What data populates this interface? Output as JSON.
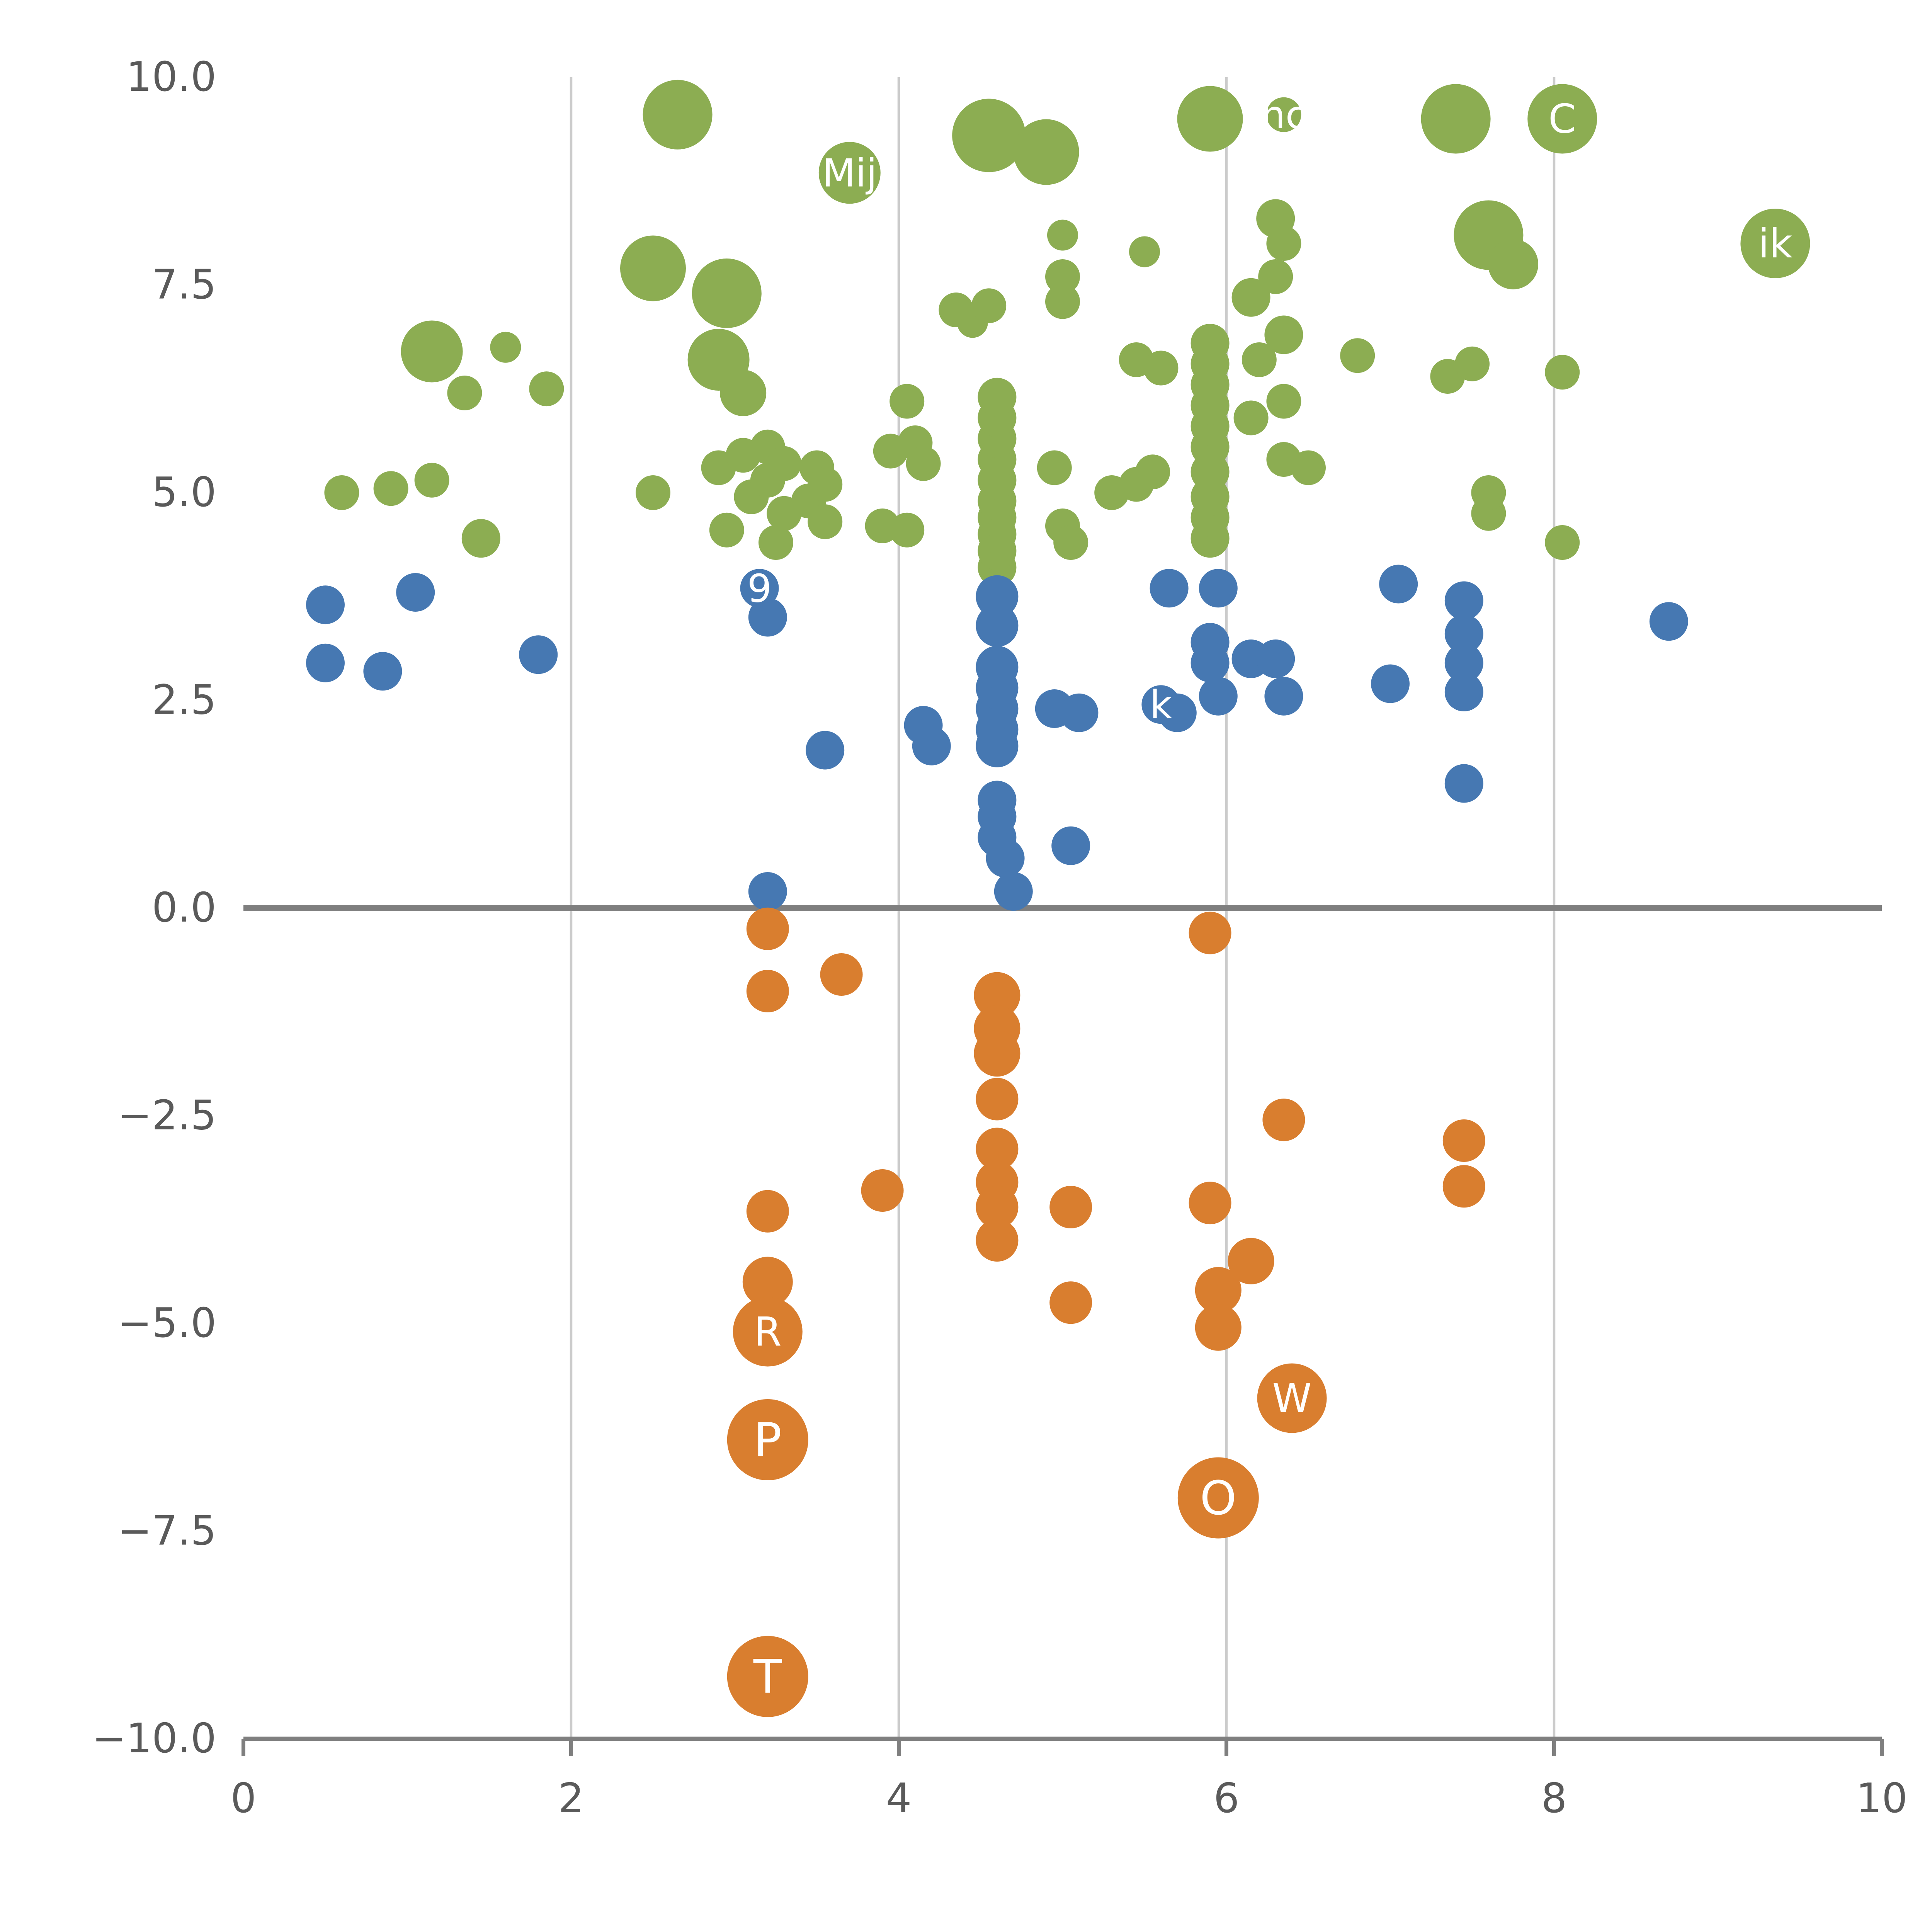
{
  "chart_data": {
    "type": "scatter",
    "title": "",
    "xlabel": "",
    "ylabel": "",
    "xlim": [
      0,
      10
    ],
    "ylim": [
      -10,
      10
    ],
    "x_ticks": {
      "values": [
        0,
        2,
        4,
        6,
        8,
        10
      ],
      "labels": [
        "0",
        "2",
        "4",
        "6",
        "8",
        "10"
      ]
    },
    "y_ticks": {
      "values": [
        10,
        7.5,
        5,
        2.5,
        0,
        -2.5,
        -5,
        -7.5,
        -10
      ],
      "labels": [
        "10.0",
        "7.5",
        "5.0",
        "2.5",
        "0.0",
        "−2.5",
        "−5.0",
        "−7.5",
        "−10.0"
      ]
    },
    "grid": {
      "vertical_x": [
        2,
        4,
        6,
        8
      ],
      "color": "#cbcbcb"
    },
    "zero_line": {
      "y": 0,
      "color": "#7f7f7f"
    },
    "axis_color": "#7f7f7f",
    "tick_label_color": "#5a5a5a",
    "bubble_label_color": "#ffffff",
    "legend": "none",
    "series": [
      {
        "name": "green",
        "color": "#8CAD52",
        "points": [
          [
            0.6,
            5.0,
            9
          ],
          [
            0.9,
            5.05,
            9
          ],
          [
            1.15,
            5.15,
            9
          ],
          [
            1.15,
            6.7,
            16
          ],
          [
            1.35,
            6.2,
            9
          ],
          [
            1.45,
            4.45,
            10
          ],
          [
            1.6,
            6.75,
            8
          ],
          [
            1.85,
            6.25,
            9
          ],
          [
            2.5,
            5.0,
            9
          ],
          [
            2.5,
            7.7,
            17
          ],
          [
            2.65,
            9.55,
            18
          ],
          [
            2.9,
            5.3,
            9
          ],
          [
            2.9,
            6.6,
            16
          ],
          [
            2.95,
            4.55,
            9
          ],
          [
            2.95,
            7.4,
            18
          ],
          [
            3.05,
            5.45,
            9
          ],
          [
            3.05,
            6.2,
            12
          ],
          [
            3.1,
            4.95,
            9
          ],
          [
            3.2,
            5.15,
            9
          ],
          [
            3.2,
            5.55,
            9
          ],
          [
            3.25,
            4.4,
            9
          ],
          [
            3.3,
            4.75,
            9
          ],
          [
            3.3,
            5.35,
            9
          ],
          [
            3.45,
            4.9,
            9
          ],
          [
            3.5,
            5.3,
            9
          ],
          [
            3.55,
            4.65,
            9
          ],
          [
            3.55,
            5.1,
            9
          ],
          [
            3.7,
            8.85,
            16,
            "Mij"
          ],
          [
            3.9,
            4.6,
            9
          ],
          [
            3.95,
            5.5,
            9
          ],
          [
            4.05,
            4.55,
            9
          ],
          [
            4.05,
            6.1,
            9
          ],
          [
            4.1,
            5.6,
            9
          ],
          [
            4.15,
            5.35,
            9
          ],
          [
            4.35,
            7.2,
            9
          ],
          [
            4.45,
            7.05,
            8
          ],
          [
            4.55,
            7.25,
            9
          ],
          [
            4.55,
            9.3,
            19
          ],
          [
            4.6,
            4.1,
            10
          ],
          [
            4.6,
            4.3,
            10
          ],
          [
            4.6,
            4.5,
            10
          ],
          [
            4.6,
            4.7,
            10
          ],
          [
            4.6,
            4.9,
            10
          ],
          [
            4.6,
            5.15,
            10
          ],
          [
            4.6,
            5.4,
            10
          ],
          [
            4.6,
            5.65,
            10
          ],
          [
            4.6,
            5.9,
            10
          ],
          [
            4.6,
            6.15,
            10
          ],
          [
            4.9,
            9.1,
            17
          ],
          [
            4.95,
            5.3,
            9
          ],
          [
            5.0,
            4.6,
            9
          ],
          [
            5.0,
            7.3,
            9
          ],
          [
            5.0,
            7.6,
            9
          ],
          [
            5.0,
            8.1,
            8
          ],
          [
            5.05,
            4.4,
            9
          ],
          [
            5.3,
            5.0,
            9
          ],
          [
            5.45,
            5.1,
            9
          ],
          [
            5.45,
            6.6,
            9
          ],
          [
            5.5,
            7.9,
            8
          ],
          [
            5.55,
            5.25,
            9
          ],
          [
            5.6,
            6.5,
            9
          ],
          [
            5.9,
            4.45,
            10
          ],
          [
            5.9,
            4.7,
            10
          ],
          [
            5.9,
            4.95,
            10
          ],
          [
            5.9,
            5.25,
            10
          ],
          [
            5.9,
            5.55,
            10
          ],
          [
            5.9,
            5.8,
            10
          ],
          [
            5.9,
            6.05,
            10
          ],
          [
            5.9,
            6.3,
            10
          ],
          [
            5.9,
            6.55,
            10
          ],
          [
            5.9,
            6.8,
            10
          ],
          [
            5.9,
            9.5,
            17
          ],
          [
            6.15,
            5.9,
            9
          ],
          [
            6.15,
            7.35,
            10
          ],
          [
            6.2,
            6.6,
            9
          ],
          [
            6.3,
            7.6,
            9
          ],
          [
            6.3,
            8.3,
            10
          ],
          [
            6.35,
            5.4,
            9
          ],
          [
            6.35,
            6.1,
            9
          ],
          [
            6.35,
            6.9,
            10
          ],
          [
            6.35,
            8.0,
            9
          ],
          [
            6.35,
            9.55,
            9,
            "nc"
          ],
          [
            6.5,
            5.3,
            9
          ],
          [
            6.8,
            6.65,
            9
          ],
          [
            7.35,
            6.4,
            9
          ],
          [
            7.4,
            9.5,
            18
          ],
          [
            7.5,
            6.55,
            9
          ],
          [
            7.6,
            4.75,
            9
          ],
          [
            7.6,
            5.0,
            9
          ],
          [
            7.6,
            8.1,
            18
          ],
          [
            7.75,
            7.75,
            13
          ],
          [
            8.05,
            4.4,
            9
          ],
          [
            8.05,
            6.45,
            9
          ],
          [
            8.05,
            9.5,
            18,
            "C"
          ],
          [
            9.35,
            8.0,
            18,
            "ik"
          ]
        ]
      },
      {
        "name": "blue",
        "color": "#4678B2",
        "points": [
          [
            0.5,
            2.95,
            10
          ],
          [
            0.5,
            3.65,
            10
          ],
          [
            0.85,
            2.85,
            10
          ],
          [
            1.05,
            3.8,
            10
          ],
          [
            1.8,
            3.05,
            10
          ],
          [
            3.15,
            3.85,
            10,
            "9"
          ],
          [
            3.2,
            0.2,
            10
          ],
          [
            3.2,
            3.5,
            10
          ],
          [
            3.55,
            1.9,
            10
          ],
          [
            4.15,
            2.2,
            10
          ],
          [
            4.2,
            1.95,
            10
          ],
          [
            4.6,
            0.85,
            10
          ],
          [
            4.6,
            1.1,
            10
          ],
          [
            4.6,
            1.3,
            10
          ],
          [
            4.6,
            1.95,
            11
          ],
          [
            4.6,
            2.15,
            11
          ],
          [
            4.6,
            2.4,
            11
          ],
          [
            4.6,
            2.65,
            11
          ],
          [
            4.6,
            2.9,
            11
          ],
          [
            4.6,
            3.4,
            11
          ],
          [
            4.6,
            3.75,
            11
          ],
          [
            4.65,
            0.6,
            10
          ],
          [
            4.7,
            0.2,
            10
          ],
          [
            4.95,
            2.4,
            10
          ],
          [
            5.05,
            0.75,
            10
          ],
          [
            5.1,
            2.35,
            10
          ],
          [
            5.6,
            2.45,
            10,
            "k"
          ],
          [
            5.7,
            2.35,
            10
          ],
          [
            5.65,
            3.85,
            10
          ],
          [
            5.9,
            2.95,
            10
          ],
          [
            5.9,
            3.2,
            10
          ],
          [
            5.95,
            2.55,
            10
          ],
          [
            5.95,
            3.85,
            10
          ],
          [
            6.15,
            3.0,
            10
          ],
          [
            6.3,
            3.0,
            10
          ],
          [
            6.35,
            2.55,
            10
          ],
          [
            7.0,
            2.7,
            10
          ],
          [
            7.05,
            3.9,
            10
          ],
          [
            7.45,
            1.5,
            10
          ],
          [
            7.45,
            2.6,
            10
          ],
          [
            7.45,
            2.95,
            10
          ],
          [
            7.45,
            3.3,
            10
          ],
          [
            7.45,
            3.7,
            10
          ],
          [
            8.7,
            3.45,
            10
          ]
        ]
      },
      {
        "name": "orange",
        "color": "#D97E2F",
        "points": [
          [
            3.2,
            -0.25,
            11
          ],
          [
            3.2,
            -1.0,
            11
          ],
          [
            3.65,
            -0.8,
            11
          ],
          [
            3.2,
            -3.65,
            11
          ],
          [
            3.2,
            -4.5,
            13
          ],
          [
            3.2,
            -5.1,
            18,
            "R"
          ],
          [
            3.2,
            -6.4,
            21,
            "P"
          ],
          [
            3.2,
            -9.25,
            21,
            "T"
          ],
          [
            3.9,
            -3.4,
            11
          ],
          [
            4.6,
            -1.05,
            12
          ],
          [
            4.6,
            -1.45,
            12
          ],
          [
            4.6,
            -1.75,
            12
          ],
          [
            4.6,
            -2.3,
            11
          ],
          [
            4.6,
            -2.9,
            11
          ],
          [
            4.6,
            -3.3,
            11
          ],
          [
            4.6,
            -3.6,
            11
          ],
          [
            4.6,
            -4.0,
            11
          ],
          [
            5.05,
            -3.6,
            11
          ],
          [
            5.05,
            -4.75,
            11
          ],
          [
            5.9,
            -0.3,
            11
          ],
          [
            5.9,
            -3.55,
            11
          ],
          [
            5.95,
            -4.6,
            12
          ],
          [
            5.95,
            -5.05,
            12
          ],
          [
            6.15,
            -4.25,
            12
          ],
          [
            6.35,
            -2.55,
            11
          ],
          [
            6.4,
            -5.9,
            18,
            "W"
          ],
          [
            5.95,
            -7.1,
            21,
            "O"
          ],
          [
            7.45,
            -2.8,
            11
          ],
          [
            7.45,
            -3.35,
            11
          ]
        ]
      }
    ]
  }
}
